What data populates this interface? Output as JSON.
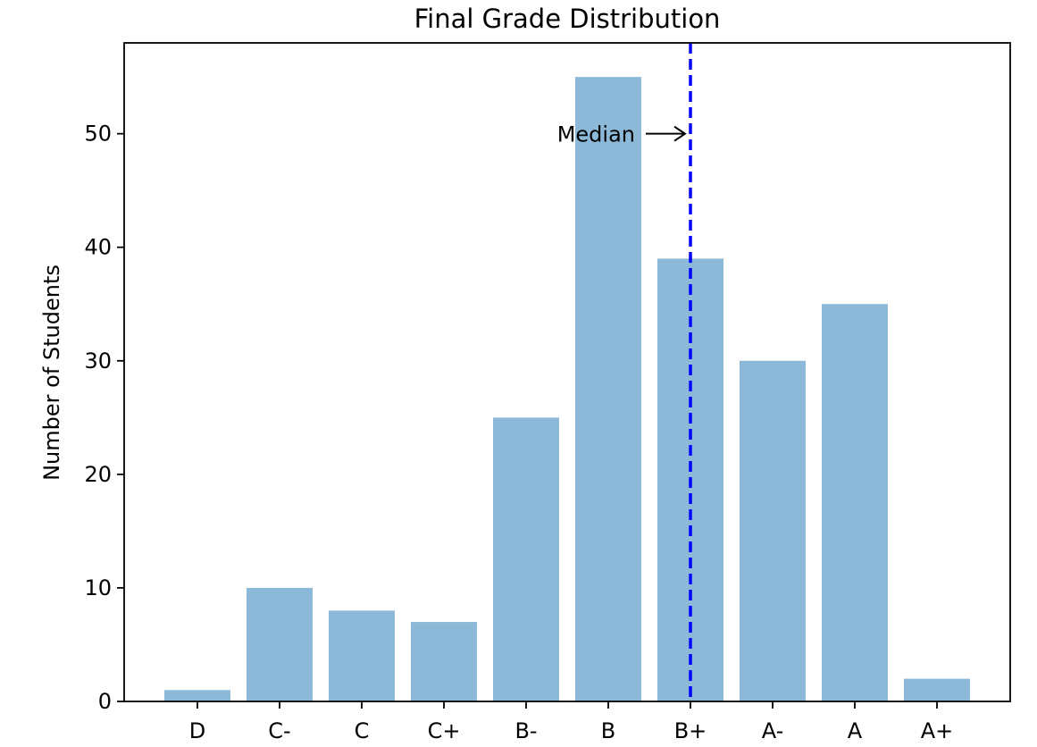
{
  "chart_data": {
    "type": "bar",
    "title": "Final Grade Distribution",
    "xlabel": "",
    "ylabel": "Number of Students",
    "categories": [
      "D",
      "C-",
      "C",
      "C+",
      "B-",
      "B",
      "B+",
      "A-",
      "A",
      "A+"
    ],
    "values": [
      1,
      10,
      8,
      7,
      25,
      55,
      39,
      30,
      35,
      2
    ],
    "ylim": [
      0,
      58
    ],
    "yticks": [
      0,
      10,
      20,
      30,
      40,
      50
    ],
    "grid": false,
    "bar_color": "#8db9d9",
    "median_line": {
      "category_index": 6,
      "color": "#0000ff",
      "style": "dashed"
    },
    "annotation": {
      "text": "Median",
      "target_y": 50,
      "arrow": "right"
    }
  }
}
